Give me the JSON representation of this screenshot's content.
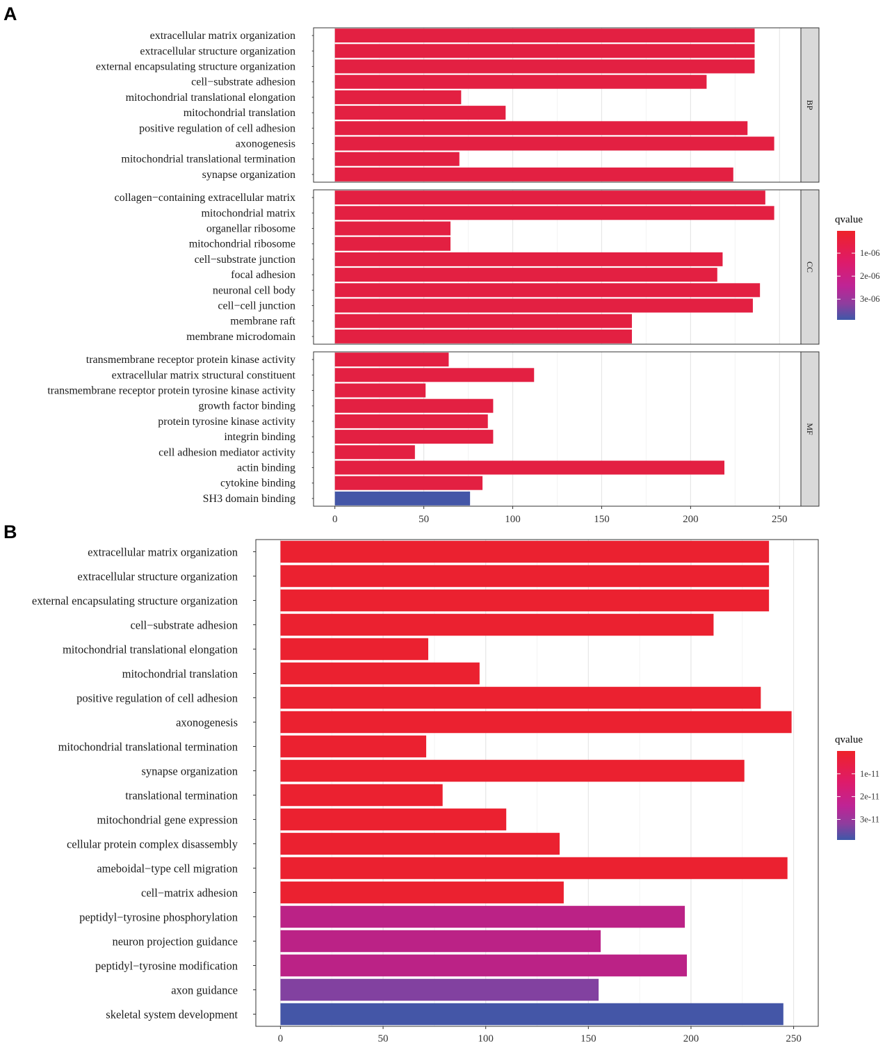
{
  "panels": {
    "a_label": "A",
    "b_label": "B"
  },
  "chart_data": [
    {
      "type": "bar",
      "orientation": "horizontal",
      "panel": "A",
      "title": "",
      "xlabel": "",
      "ylabel": "",
      "xlim": [
        -12,
        262
      ],
      "xticks": [
        0,
        50,
        100,
        150,
        200,
        250
      ],
      "grid": true,
      "legend": {
        "title": "qvalue",
        "position": "right",
        "ticks": [
          "1e-06",
          "2e-06",
          "3e-06"
        ],
        "tick_values": [
          1e-06,
          2e-06,
          3e-06
        ],
        "range": [
          3e-08,
          3.9e-06
        ],
        "colors": [
          "#EE2229",
          "#C91A7F",
          "#8E3D9E",
          "#3E58A8"
        ]
      },
      "facets": [
        {
          "name": "BP",
          "categories": [
            "extracellular matrix organization",
            "extracellular structure organization",
            "external encapsulating structure organization",
            "cell−substrate adhesion",
            "mitochondrial translational elongation",
            "mitochondrial translation",
            "positive regulation of cell adhesion",
            "axonogenesis",
            "mitochondrial translational termination",
            "synapse organization"
          ],
          "values": [
            236,
            236,
            236,
            209,
            71,
            96,
            232,
            247,
            70,
            224
          ],
          "qvalues": [
            4e-07,
            4e-07,
            4e-07,
            4e-07,
            4e-07,
            4e-07,
            4e-07,
            4e-07,
            4e-07,
            4e-07
          ]
        },
        {
          "name": "CC",
          "categories": [
            "collagen−containing extracellular matrix",
            "mitochondrial matrix",
            "organellar ribosome",
            "mitochondrial ribosome",
            "cell−substrate junction",
            "focal adhesion",
            "neuronal cell body",
            "cell−cell junction",
            "membrane raft",
            "membrane microdomain"
          ],
          "values": [
            242,
            247,
            65,
            65,
            218,
            215,
            239,
            235,
            167,
            167
          ],
          "qvalues": [
            4e-07,
            4e-07,
            4e-07,
            4e-07,
            4e-07,
            4e-07,
            4e-07,
            4e-07,
            4e-07,
            4e-07
          ]
        },
        {
          "name": "MF",
          "categories": [
            "transmembrane receptor protein kinase activity",
            "extracellular matrix structural constituent",
            "transmembrane receptor protein tyrosine kinase activity",
            "growth factor binding",
            "protein tyrosine kinase activity",
            "integrin binding",
            "cell adhesion mediator activity",
            "actin binding",
            "cytokine binding",
            "SH3 domain binding"
          ],
          "values": [
            64,
            112,
            51,
            89,
            86,
            89,
            45,
            219,
            83,
            76
          ],
          "qvalues": [
            4e-07,
            4e-07,
            4e-07,
            4e-07,
            4e-07,
            4e-07,
            4e-07,
            4e-07,
            4e-07,
            3.8e-06
          ]
        }
      ]
    },
    {
      "type": "bar",
      "orientation": "horizontal",
      "panel": "B",
      "title": "",
      "xlabel": "",
      "ylabel": "",
      "xlim": [
        -12,
        262
      ],
      "xticks": [
        0,
        50,
        100,
        150,
        200,
        250
      ],
      "grid": true,
      "legend": {
        "title": "qvalue",
        "position": "right",
        "ticks": [
          "1e-11",
          "2e-11",
          "3e-11"
        ],
        "tick_values": [
          1e-11,
          2e-11,
          3e-11
        ],
        "range": [
          0,
          3.9e-11
        ],
        "colors": [
          "#EE2229",
          "#C91A7F",
          "#8E3D9E",
          "#3E58A8"
        ]
      },
      "categories": [
        "extracellular matrix organization",
        "extracellular structure organization",
        "external encapsulating structure organization",
        "cell−substrate adhesion",
        "mitochondrial translational elongation",
        "mitochondrial translation",
        "positive regulation of cell adhesion",
        "axonogenesis",
        "mitochondrial translational termination",
        "synapse organization",
        "translational termination",
        "mitochondrial gene expression",
        "cellular protein complex disassembly",
        "ameboidal−type cell migration",
        "cell−matrix adhesion",
        "peptidyl−tyrosine phosphorylation",
        "neuron projection guidance",
        "peptidyl−tyrosine modification",
        "axon guidance",
        "skeletal system development"
      ],
      "values": [
        238,
        238,
        238,
        211,
        72,
        97,
        234,
        249,
        71,
        226,
        79,
        110,
        136,
        247,
        138,
        197,
        156,
        198,
        155,
        245
      ],
      "qvalues": [
        1e-12,
        1e-12,
        1e-12,
        1e-12,
        1e-12,
        1e-12,
        1e-12,
        1e-12,
        1e-12,
        1e-12,
        1e-12,
        1e-12,
        1e-12,
        1e-12,
        1e-12,
        1.6e-11,
        1.6e-11,
        1.6e-11,
        2.8e-11,
        3.8e-11
      ]
    }
  ]
}
